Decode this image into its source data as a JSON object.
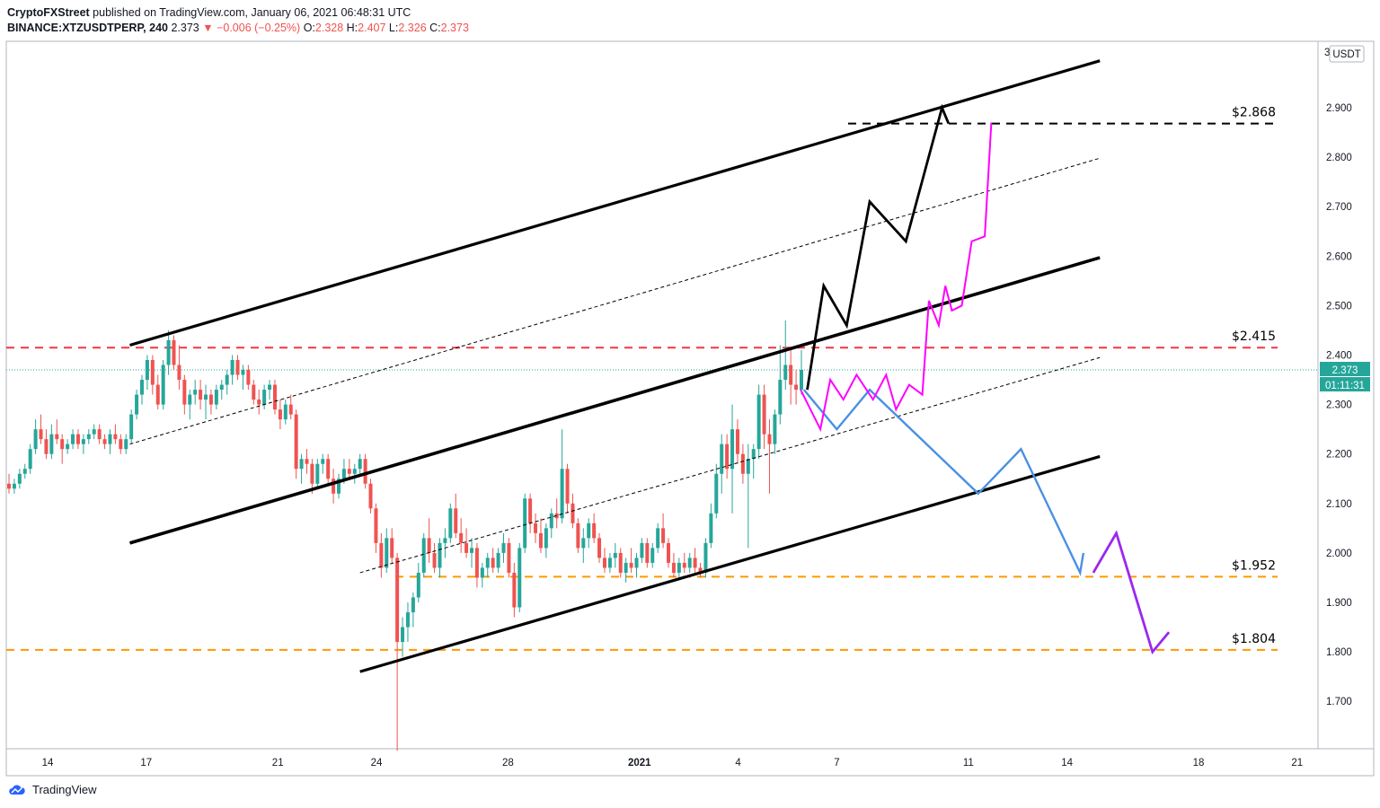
{
  "header": {
    "publisher": "CryptoFXStreet",
    "published_text": "published on TradingView.com, January 06, 2021 06:48:31 UTC",
    "symbol": "BINANCE:XTZUSDTPERP, 240",
    "last": "2.373",
    "change": "▼ −0.006 (−0.25%)",
    "o_label": "O:",
    "o_val": "2.328",
    "h_label": "H:",
    "h_val": "2.407",
    "l_label": "L:",
    "l_val": "2.326",
    "c_label": "C:",
    "c_val": "2.373"
  },
  "footer": {
    "brand": "TradingView"
  },
  "axis": {
    "currency": "USDT",
    "price_badge": "2.373",
    "countdown": "01:11:31"
  },
  "colors": {
    "up": "#26a69a",
    "down": "#ef5350",
    "red_level": "#f23645",
    "orange_level": "#ff9800",
    "magenta": "#ff00ff",
    "blue": "#4a90e2",
    "purple": "#9c27f0"
  },
  "chart_data": {
    "type": "candlestick",
    "y_ticks": [
      "2.900",
      "2.800",
      "2.700",
      "2.600",
      "2.500",
      "2.400",
      "2.300",
      "2.200",
      "2.100",
      "2.000",
      "1.900",
      "1.800",
      "1.700"
    ],
    "x_ticks": [
      {
        "label": "14",
        "day": 14
      },
      {
        "label": "17",
        "day": 17
      },
      {
        "label": "21",
        "day": 21
      },
      {
        "label": "24",
        "day": 24
      },
      {
        "label": "28",
        "day": 28
      },
      {
        "label": "2021",
        "day": 32
      },
      {
        "label": "4",
        "day": 35
      },
      {
        "label": "7",
        "day": 38
      },
      {
        "label": "11",
        "day": 42
      },
      {
        "label": "14",
        "day": 45
      },
      {
        "label": "18",
        "day": 49
      },
      {
        "label": "21",
        "day": 52
      }
    ],
    "ylim": [
      1.6,
      3.01
    ],
    "levels": [
      {
        "label": "$2.868",
        "price": 2.868,
        "style": "black"
      },
      {
        "label": "$2.415",
        "price": 2.415,
        "style": "red"
      },
      {
        "label": "$1.952",
        "price": 1.952,
        "style": "orange"
      },
      {
        "label": "$1.804",
        "price": 1.804,
        "style": "orange"
      }
    ],
    "candles": [
      [
        2.14,
        2.16,
        2.12,
        2.13
      ],
      [
        2.13,
        2.15,
        2.12,
        2.14
      ],
      [
        2.14,
        2.17,
        2.13,
        2.16
      ],
      [
        2.16,
        2.18,
        2.15,
        2.17
      ],
      [
        2.17,
        2.22,
        2.16,
        2.21
      ],
      [
        2.21,
        2.27,
        2.2,
        2.25
      ],
      [
        2.25,
        2.28,
        2.22,
        2.23
      ],
      [
        2.23,
        2.25,
        2.19,
        2.2
      ],
      [
        2.2,
        2.26,
        2.19,
        2.24
      ],
      [
        2.24,
        2.27,
        2.22,
        2.23
      ],
      [
        2.23,
        2.24,
        2.18,
        2.21
      ],
      [
        2.21,
        2.23,
        2.2,
        2.22
      ],
      [
        2.22,
        2.25,
        2.21,
        2.24
      ],
      [
        2.24,
        2.25,
        2.21,
        2.22
      ],
      [
        2.22,
        2.24,
        2.2,
        2.23
      ],
      [
        2.23,
        2.25,
        2.22,
        2.24
      ],
      [
        2.24,
        2.26,
        2.23,
        2.25
      ],
      [
        2.25,
        2.26,
        2.22,
        2.23
      ],
      [
        2.23,
        2.24,
        2.21,
        2.22
      ],
      [
        2.22,
        2.25,
        2.2,
        2.24
      ],
      [
        2.24,
        2.26,
        2.22,
        2.23
      ],
      [
        2.23,
        2.24,
        2.2,
        2.21
      ],
      [
        2.21,
        2.24,
        2.2,
        2.23
      ],
      [
        2.23,
        2.29,
        2.22,
        2.28
      ],
      [
        2.28,
        2.33,
        2.27,
        2.32
      ],
      [
        2.32,
        2.36,
        2.3,
        2.35
      ],
      [
        2.35,
        2.4,
        2.33,
        2.39
      ],
      [
        2.39,
        2.4,
        2.32,
        2.34
      ],
      [
        2.34,
        2.36,
        2.29,
        2.3
      ],
      [
        2.3,
        2.39,
        2.29,
        2.38
      ],
      [
        2.38,
        2.45,
        2.36,
        2.43
      ],
      [
        2.43,
        2.44,
        2.37,
        2.38
      ],
      [
        2.38,
        2.42,
        2.33,
        2.35
      ],
      [
        2.35,
        2.36,
        2.28,
        2.3
      ],
      [
        2.3,
        2.33,
        2.27,
        2.32
      ],
      [
        2.32,
        2.35,
        2.3,
        2.33
      ],
      [
        2.33,
        2.35,
        2.29,
        2.31
      ],
      [
        2.31,
        2.34,
        2.27,
        2.32
      ],
      [
        2.32,
        2.33,
        2.28,
        2.3
      ],
      [
        2.3,
        2.34,
        2.29,
        2.33
      ],
      [
        2.33,
        2.35,
        2.31,
        2.34
      ],
      [
        2.34,
        2.37,
        2.32,
        2.36
      ],
      [
        2.36,
        2.4,
        2.34,
        2.39
      ],
      [
        2.39,
        2.4,
        2.35,
        2.36
      ],
      [
        2.36,
        2.38,
        2.33,
        2.37
      ],
      [
        2.37,
        2.38,
        2.33,
        2.34
      ],
      [
        2.34,
        2.35,
        2.3,
        2.31
      ],
      [
        2.31,
        2.33,
        2.28,
        2.3
      ],
      [
        2.3,
        2.34,
        2.29,
        2.33
      ],
      [
        2.33,
        2.35,
        2.31,
        2.34
      ],
      [
        2.34,
        2.35,
        2.28,
        2.29
      ],
      [
        2.29,
        2.31,
        2.25,
        2.27
      ],
      [
        2.27,
        2.31,
        2.26,
        2.3
      ],
      [
        2.3,
        2.32,
        2.27,
        2.28
      ],
      [
        2.28,
        2.29,
        2.15,
        2.17
      ],
      [
        2.17,
        2.2,
        2.14,
        2.19
      ],
      [
        2.19,
        2.21,
        2.16,
        2.18
      ],
      [
        2.18,
        2.19,
        2.12,
        2.14
      ],
      [
        2.14,
        2.19,
        2.13,
        2.18
      ],
      [
        2.18,
        2.2,
        2.16,
        2.19
      ],
      [
        2.19,
        2.2,
        2.14,
        2.15
      ],
      [
        2.15,
        2.17,
        2.1,
        2.12
      ],
      [
        2.12,
        2.16,
        2.11,
        2.15
      ],
      [
        2.15,
        2.19,
        2.14,
        2.17
      ],
      [
        2.17,
        2.19,
        2.15,
        2.16
      ],
      [
        2.16,
        2.18,
        2.14,
        2.17
      ],
      [
        2.17,
        2.2,
        2.16,
        2.19
      ],
      [
        2.19,
        2.2,
        2.13,
        2.14
      ],
      [
        2.14,
        2.15,
        2.08,
        2.09
      ],
      [
        2.09,
        2.1,
        2.0,
        2.02
      ],
      [
        2.02,
        2.04,
        1.95,
        1.97
      ],
      [
        1.97,
        2.05,
        1.96,
        2.03
      ],
      [
        2.03,
        2.05,
        1.98,
        1.99
      ],
      [
        1.99,
        2.0,
        1.6,
        1.82
      ],
      [
        1.82,
        1.87,
        1.79,
        1.85
      ],
      [
        1.85,
        1.9,
        1.82,
        1.88
      ],
      [
        1.88,
        1.92,
        1.85,
        1.91
      ],
      [
        1.91,
        1.98,
        1.9,
        1.96
      ],
      [
        1.96,
        2.04,
        1.95,
        2.03
      ],
      [
        2.03,
        2.07,
        1.98,
        2.0
      ],
      [
        2.0,
        2.02,
        1.96,
        1.97
      ],
      [
        1.97,
        2.03,
        1.95,
        2.02
      ],
      [
        2.02,
        2.05,
        1.99,
        2.03
      ],
      [
        2.03,
        2.1,
        2.02,
        2.09
      ],
      [
        2.09,
        2.12,
        2.03,
        2.04
      ],
      [
        2.04,
        2.07,
        2.0,
        2.02
      ],
      [
        2.02,
        2.05,
        1.99,
        2.0
      ],
      [
        2.0,
        2.03,
        1.97,
        2.01
      ],
      [
        2.01,
        2.02,
        1.93,
        1.95
      ],
      [
        1.95,
        1.98,
        1.93,
        1.97
      ],
      [
        1.97,
        2.0,
        1.95,
        1.99
      ],
      [
        1.99,
        2.01,
        1.96,
        1.97
      ],
      [
        1.97,
        2.01,
        1.96,
        2.0
      ],
      [
        2.0,
        2.04,
        1.98,
        2.02
      ],
      [
        2.02,
        2.03,
        1.95,
        1.96
      ],
      [
        1.96,
        1.98,
        1.87,
        1.89
      ],
      [
        1.89,
        2.02,
        1.88,
        2.01
      ],
      [
        2.01,
        2.12,
        2.0,
        2.11
      ],
      [
        2.11,
        2.12,
        2.04,
        2.06
      ],
      [
        2.06,
        2.08,
        2.02,
        2.04
      ],
      [
        2.04,
        2.07,
        2.0,
        2.01
      ],
      [
        2.01,
        2.06,
        1.99,
        2.05
      ],
      [
        2.05,
        2.09,
        2.03,
        2.08
      ],
      [
        2.08,
        2.11,
        2.05,
        2.07
      ],
      [
        2.07,
        2.25,
        2.06,
        2.17
      ],
      [
        2.17,
        2.18,
        2.08,
        2.1
      ],
      [
        2.1,
        2.12,
        2.05,
        2.06
      ],
      [
        2.06,
        2.07,
        2.0,
        2.01
      ],
      [
        2.01,
        2.05,
        1.98,
        2.03
      ],
      [
        2.03,
        2.07,
        2.01,
        2.06
      ],
      [
        2.06,
        2.08,
        2.02,
        2.03
      ],
      [
        2.03,
        2.04,
        1.98,
        1.99
      ],
      [
        1.99,
        2.01,
        1.96,
        1.97
      ],
      [
        1.97,
        2.0,
        1.96,
        1.99
      ],
      [
        1.99,
        2.02,
        1.97,
        2.0
      ],
      [
        2.0,
        2.01,
        1.95,
        1.96
      ],
      [
        1.96,
        1.99,
        1.94,
        1.98
      ],
      [
        1.98,
        2.01,
        1.96,
        1.97
      ],
      [
        1.97,
        2.0,
        1.95,
        1.99
      ],
      [
        1.99,
        2.03,
        1.98,
        2.02
      ],
      [
        2.02,
        2.03,
        1.97,
        1.98
      ],
      [
        1.98,
        2.02,
        1.97,
        2.01
      ],
      [
        2.01,
        2.06,
        2.0,
        2.05
      ],
      [
        2.05,
        2.08,
        2.01,
        2.02
      ],
      [
        2.02,
        2.03,
        1.97,
        1.98
      ],
      [
        1.98,
        2.0,
        1.95,
        1.96
      ],
      [
        1.96,
        1.99,
        1.95,
        1.98
      ],
      [
        1.98,
        2.0,
        1.96,
        1.97
      ],
      [
        1.97,
        2.0,
        1.96,
        1.99
      ],
      [
        1.99,
        2.01,
        1.96,
        1.97
      ],
      [
        1.97,
        1.98,
        1.95,
        1.96
      ],
      [
        1.96,
        2.03,
        1.95,
        2.02
      ],
      [
        2.02,
        2.1,
        2.01,
        2.08
      ],
      [
        2.08,
        2.18,
        2.07,
        2.16
      ],
      [
        2.16,
        2.24,
        2.12,
        2.22
      ],
      [
        2.22,
        2.24,
        2.15,
        2.17
      ],
      [
        2.17,
        2.3,
        2.08,
        2.25
      ],
      [
        2.25,
        2.27,
        2.18,
        2.2
      ],
      [
        2.2,
        2.22,
        2.14,
        2.16
      ],
      [
        2.16,
        2.22,
        2.01,
        2.19
      ],
      [
        2.19,
        2.22,
        2.15,
        2.21
      ],
      [
        2.21,
        2.34,
        2.19,
        2.32
      ],
      [
        2.32,
        2.34,
        2.21,
        2.24
      ],
      [
        2.24,
        2.27,
        2.12,
        2.22
      ],
      [
        2.22,
        2.29,
        2.2,
        2.28
      ],
      [
        2.28,
        2.42,
        2.26,
        2.35
      ],
      [
        2.35,
        2.47,
        2.33,
        2.38
      ],
      [
        2.38,
        2.41,
        2.3,
        2.34
      ],
      [
        2.34,
        2.37,
        2.3,
        2.33
      ],
      [
        2.33,
        2.41,
        2.32,
        2.37
      ]
    ],
    "channel_lines": [
      {
        "x1": 16.5,
        "y1": 2.42,
        "x2": 46.0,
        "y2": 2.995,
        "w": 3.2
      },
      {
        "x1": 16.5,
        "y1": 2.02,
        "x2": 46.0,
        "y2": 2.597,
        "w": 3.6
      },
      {
        "x1": 23.5,
        "y1": 1.76,
        "x2": 46.0,
        "y2": 2.195,
        "w": 3.2
      }
    ],
    "dashed_lines": [
      {
        "x1": 16.5,
        "y1": 2.22,
        "x2": 46.0,
        "y2": 2.798
      },
      {
        "x1": 23.5,
        "y1": 1.96,
        "x2": 46.0,
        "y2": 2.395
      }
    ],
    "black_path": [
      [
        37.1,
        2.33
      ],
      [
        37.6,
        2.54
      ],
      [
        38.3,
        2.46
      ],
      [
        39.0,
        2.71
      ],
      [
        40.1,
        2.63
      ],
      [
        41.2,
        2.9
      ],
      [
        41.4,
        2.868
      ]
    ],
    "magenta_path": [
      [
        36.9,
        2.33
      ],
      [
        37.5,
        2.25
      ],
      [
        37.8,
        2.35
      ],
      [
        38.2,
        2.31
      ],
      [
        38.6,
        2.36
      ],
      [
        39.1,
        2.31
      ],
      [
        39.5,
        2.36
      ],
      [
        39.8,
        2.29
      ],
      [
        40.2,
        2.34
      ],
      [
        40.6,
        2.32
      ],
      [
        40.8,
        2.51
      ],
      [
        41.1,
        2.46
      ],
      [
        41.3,
        2.54
      ],
      [
        41.5,
        2.49
      ],
      [
        41.8,
        2.5
      ],
      [
        42.1,
        2.63
      ],
      [
        42.5,
        2.64
      ],
      [
        42.7,
        2.87
      ]
    ],
    "blue_path": [
      [
        37.0,
        2.33
      ],
      [
        38.0,
        2.25
      ],
      [
        39.0,
        2.33
      ],
      [
        42.3,
        2.12
      ],
      [
        43.6,
        2.21
      ],
      [
        45.4,
        1.96
      ],
      [
        45.5,
        2.0
      ]
    ],
    "purple_path": [
      [
        45.8,
        1.96
      ],
      [
        46.5,
        2.04
      ],
      [
        47.6,
        1.8
      ],
      [
        48.1,
        1.84
      ]
    ]
  }
}
